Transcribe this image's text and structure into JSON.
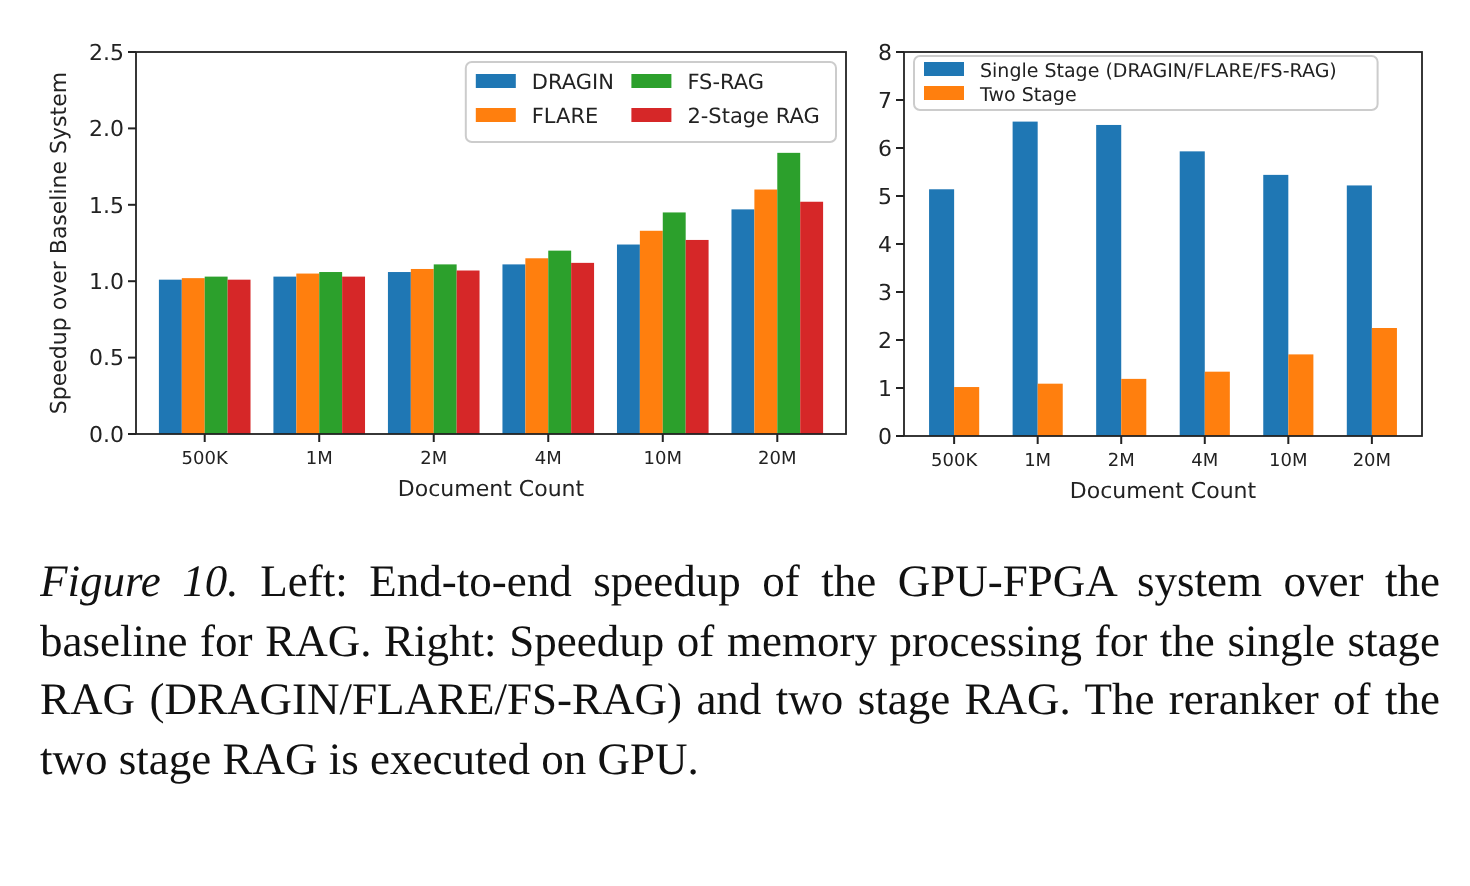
{
  "chart_data": [
    {
      "type": "bar",
      "xlabel": "Document Count",
      "ylabel": "Speedup over Baseline System",
      "categories": [
        "500K",
        "1M",
        "2M",
        "4M",
        "10M",
        "20M"
      ],
      "series": [
        {
          "name": "DRAGIN",
          "color": "#1f77b4",
          "values": [
            1.01,
            1.03,
            1.06,
            1.11,
            1.24,
            1.47
          ]
        },
        {
          "name": "FLARE",
          "color": "#ff7f0e",
          "values": [
            1.02,
            1.05,
            1.08,
            1.15,
            1.33,
            1.6
          ]
        },
        {
          "name": "FS-RAG",
          "color": "#2ca02c",
          "values": [
            1.03,
            1.06,
            1.11,
            1.2,
            1.45,
            1.84
          ]
        },
        {
          "name": "2-Stage RAG",
          "color": "#d62728",
          "values": [
            1.01,
            1.03,
            1.07,
            1.12,
            1.27,
            1.52
          ]
        }
      ],
      "ylim": [
        0,
        2.5
      ],
      "yticks": [
        {
          "value": 0,
          "label": "0.0"
        },
        {
          "value": 0.5,
          "label": "0.5"
        },
        {
          "value": 1,
          "label": "1.0"
        },
        {
          "value": 1.5,
          "label": "1.5"
        },
        {
          "value": 2,
          "label": "2.0"
        },
        {
          "value": 2.5,
          "label": "2.5"
        }
      ],
      "legend": "top right",
      "grid": false,
      "annotations": [
        "Figure 10.",
        "Left: End-to-end speedup of the GPU-FPGA system over the baseline for RAG. Right: Speedup of memory processing for the single stage RAG (DRAGIN/FLARE/FS-RAG) and two stage RAG. The reranker of the two stage RAG is executed on GPU."
      ]
    },
    {
      "type": "bar",
      "xlabel": "Document Count",
      "categories": [
        "500K",
        "1M",
        "2M",
        "4M",
        "10M",
        "20M"
      ],
      "series": [
        {
          "name": "Single Stage (DRAGIN/FLARE/FS-RAG)",
          "color": "#1f77b4",
          "values": [
            5.14,
            6.55,
            6.48,
            5.93,
            5.44,
            5.22
          ]
        },
        {
          "name": "Two Stage",
          "color": "#ff7f0e",
          "values": [
            1.02,
            1.09,
            1.19,
            1.34,
            1.7,
            2.25
          ]
        }
      ],
      "ylim": [
        0,
        8
      ],
      "yticks": [
        0,
        1,
        2,
        3,
        4,
        5,
        6,
        7,
        8
      ],
      "legend": "top left",
      "grid": false
    }
  ]
}
